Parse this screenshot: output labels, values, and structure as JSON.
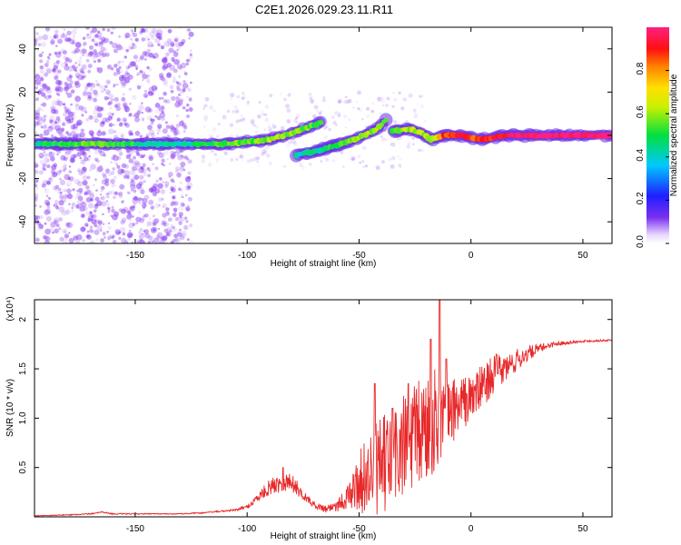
{
  "title": "C2E1.2026.029.23.11.R11",
  "colors": {
    "snr_line": "#e8282a",
    "axis": "#000000",
    "scatter_dot": "#8a3cf0"
  },
  "chart_data": [
    {
      "type": "heatmap",
      "name": "spectrogram",
      "xlabel": "Height of straight line (km)",
      "ylabel": "Frequency (Hz)",
      "xlim": [
        -195,
        63
      ],
      "ylim": [
        -50,
        50
      ],
      "xticks": [
        -150,
        -100,
        -50,
        0,
        50
      ],
      "yticks": [
        -40,
        -20,
        0,
        20,
        40
      ],
      "colorbar": {
        "label": "Normalized spectral amplitude",
        "range": [
          0,
          1
        ],
        "ticks": [
          "0.0",
          "0.2",
          "0.4",
          "0.6",
          "0.8"
        ],
        "colormap": "rainbow (purple-blue-cyan-green-yellow-orange-red-magenta)"
      },
      "tracks": [
        {
          "name": "main-low",
          "points": [
            [
              -195,
              -4,
              0.45
            ],
            [
              -170,
              -4,
              0.55
            ],
            [
              -150,
              -4,
              0.5
            ],
            [
              -135,
              -4,
              0.4
            ],
            [
              -125,
              -4,
              0.45
            ],
            [
              -110,
              -4,
              0.55
            ],
            [
              -100,
              -3,
              0.55
            ],
            [
              -90,
              -2,
              0.6
            ],
            [
              -80,
              1,
              0.6
            ],
            [
              -72,
              4,
              0.55
            ],
            [
              -67,
              6,
              0.5
            ]
          ]
        },
        {
          "name": "main-high",
          "points": [
            [
              -78,
              -9,
              0.4
            ],
            [
              -68,
              -7,
              0.45
            ],
            [
              -58,
              -4,
              0.55
            ],
            [
              -50,
              -1,
              0.6
            ],
            [
              -42,
              3,
              0.6
            ],
            [
              -38,
              7,
              0.55
            ]
          ]
        },
        {
          "name": "tail",
          "points": [
            [
              -35,
              2,
              0.55
            ],
            [
              -28,
              3,
              0.6
            ],
            [
              -22,
              1,
              0.6
            ],
            [
              -18,
              -2,
              0.55
            ],
            [
              -12,
              0,
              0.85
            ],
            [
              -5,
              0,
              0.9
            ],
            [
              5,
              -2,
              0.85
            ],
            [
              15,
              0,
              0.95
            ],
            [
              30,
              0,
              1.0
            ],
            [
              45,
              0,
              1.0
            ],
            [
              63,
              0,
              1.0
            ]
          ]
        }
      ]
    },
    {
      "type": "line",
      "name": "snr",
      "xlabel": "Height of straight line (km)",
      "ylabel": "SNR (10 * v/v)",
      "scale_label": "(x10⁴)",
      "xlim": [
        -195,
        63
      ],
      "ylim": [
        0,
        2.2
      ],
      "xticks": [
        -150,
        -100,
        -50,
        0,
        50
      ],
      "yticks": [
        0.5,
        1.0,
        1.5,
        2.0
      ],
      "series": [
        {
          "name": "SNR",
          "x": [
            -195,
            -180,
            -170,
            -165,
            -160,
            -150,
            -140,
            -130,
            -120,
            -110,
            -105,
            -100,
            -95,
            -90,
            -85,
            -80,
            -75,
            -70,
            -65,
            -60,
            -55,
            -50,
            -45,
            -40,
            -35,
            -30,
            -25,
            -20,
            -15,
            -10,
            -5,
            0,
            5,
            10,
            15,
            20,
            25,
            30,
            35,
            40,
            50,
            63
          ],
          "y": [
            0.01,
            0.02,
            0.03,
            0.05,
            0.03,
            0.03,
            0.03,
            0.03,
            0.04,
            0.06,
            0.07,
            0.1,
            0.2,
            0.3,
            0.35,
            0.35,
            0.22,
            0.12,
            0.08,
            0.12,
            0.2,
            0.35,
            0.45,
            0.5,
            0.6,
            0.7,
            0.8,
            0.9,
            1.0,
            1.05,
            1.15,
            1.2,
            1.32,
            1.45,
            1.5,
            1.58,
            1.65,
            1.7,
            1.74,
            1.76,
            1.78,
            1.79
          ],
          "noise_amplitude": [
            0.004,
            0.005,
            0.006,
            0.006,
            0.006,
            0.006,
            0.005,
            0.005,
            0.006,
            0.008,
            0.01,
            0.02,
            0.05,
            0.08,
            0.1,
            0.1,
            0.05,
            0.03,
            0.04,
            0.07,
            0.12,
            0.3,
            0.45,
            0.5,
            0.55,
            0.55,
            0.55,
            0.6,
            0.5,
            0.35,
            0.3,
            0.25,
            0.22,
            0.2,
            0.15,
            0.12,
            0.08,
            0.05,
            0.03,
            0.02,
            0.01,
            0.01
          ],
          "peaks": [
            [
              -84,
              0.5
            ],
            [
              -43,
              1.35
            ],
            [
              -35,
              1.1
            ],
            [
              -28,
              1.35
            ],
            [
              -18,
              1.8
            ],
            [
              -14,
              2.2
            ],
            [
              -11,
              1.6
            ],
            [
              -2,
              1.25
            ],
            [
              12,
              1.45
            ]
          ]
        }
      ]
    }
  ]
}
